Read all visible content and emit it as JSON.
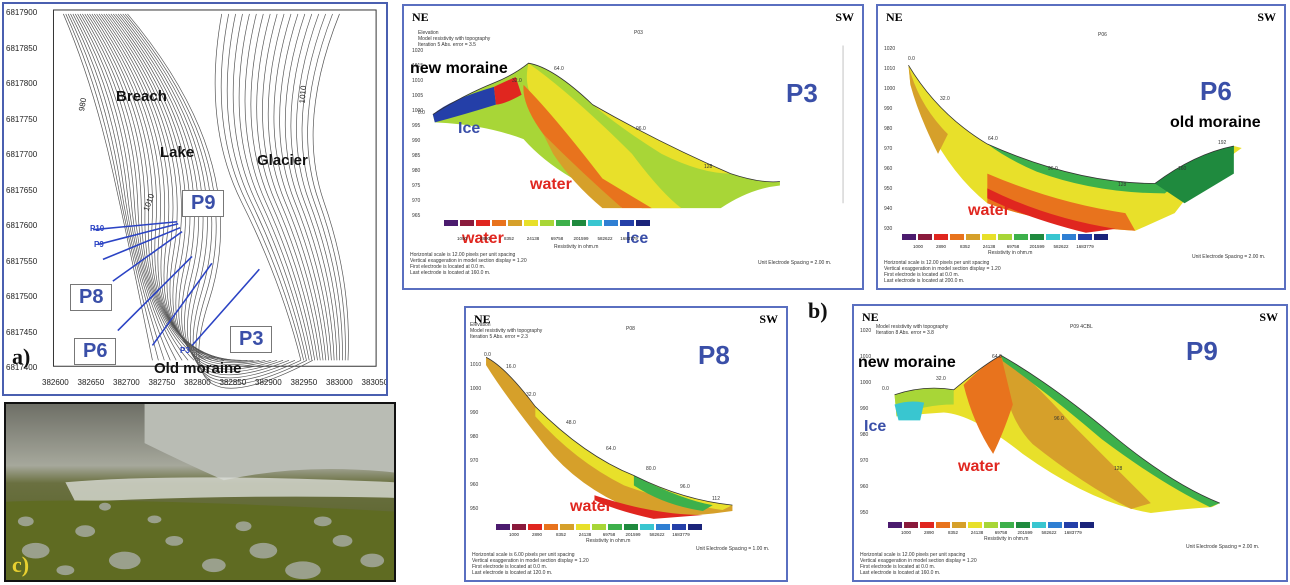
{
  "map": {
    "labels": {
      "breach": "Breach",
      "lake": "Lake",
      "glacier": "Glacier",
      "old_moraine": "Old moraine",
      "c1010a": "1010",
      "c1010b": "1010",
      "c980": "980"
    },
    "profiles": [
      "P9",
      "P8",
      "P6",
      "P3"
    ],
    "small_profiles": [
      "P10",
      "P9",
      "P3"
    ],
    "y_ticks": [
      "6817900",
      "6817850",
      "6817800",
      "6817750",
      "6817700",
      "6817650",
      "6817600",
      "6817550",
      "6817500",
      "6817450",
      "6817400"
    ],
    "x_ticks": [
      "382600",
      "382650",
      "382700",
      "382750",
      "382800",
      "382850",
      "382900",
      "382950",
      "383000",
      "383050"
    ],
    "tag": "a)"
  },
  "photo": {
    "tag": "c)"
  },
  "b_tag": "b)",
  "sections": {
    "p3": {
      "ne": "NE",
      "sw": "SW",
      "title": "P3",
      "sub": "P03",
      "hdr": "Elevation\nModel resistivity with topography\nIteration 5 Abs. error = 3.5",
      "new_moraine": "new moraine",
      "ice": "Ice",
      "ice2": "Ice",
      "water": "water",
      "water2": "water",
      "foot": "Horizontal scale is 12.00 pixels per unit spacing\nVertical exaggeration in model section display = 1.20\nFirst electrode is located at 0.0 m.\nLast electrode is located at 160.0 m.",
      "spacing": "Unit Electrode Spacing = 2.00 m.",
      "res": "Resistivity in ohm.m",
      "elev": [
        "1020",
        "1015",
        "1010",
        "1005",
        "1000",
        "995",
        "990",
        "985",
        "980",
        "975",
        "970",
        "965"
      ],
      "dist": [
        "0.0",
        "32.0",
        "64.0",
        "96.0",
        "128"
      ]
    },
    "p6": {
      "ne": "NE",
      "sw": "SW",
      "title": "P6",
      "sub": "P06",
      "old_moraine": "old moraine",
      "water": "water",
      "foot": "Horizontal scale is 12.00 pixels per unit spacing\nVertical exaggeration in model section display = 1.20\nFirst electrode is located at 0.0 m.\nLast electrode is located at 200.0 m.",
      "spacing": "Unit Electrode Spacing = 2.00 m.",
      "res": "Resistivity in ohm.m",
      "elev": [
        "1020",
        "1010",
        "1000",
        "990",
        "980",
        "970",
        "960",
        "950",
        "940",
        "930"
      ],
      "dist": [
        "0.0",
        "32.0",
        "64.0",
        "96.0",
        "128",
        "160",
        "192"
      ]
    },
    "p8": {
      "ne": "NE",
      "sw": "SW",
      "title": "P8",
      "sub": "P08",
      "hdr": "Elevation\nModel resistivity with topography\nIteration 5 Abs. error = 2.3",
      "water": "water",
      "foot": "Horizontal scale is 6.00 pixels per unit spacing\nVertical exaggeration in model section display = 1.20\nFirst electrode is located at 0.0 m.\nLast electrode is located at 120.0 m.",
      "spacing": "Unit Electrode Spacing = 1.00 m.",
      "res": "Resistivity in ohm.m",
      "elev": [
        "1010",
        "1000",
        "990",
        "980",
        "970",
        "960",
        "950"
      ],
      "dist": [
        "0.0",
        "16.0",
        "32.0",
        "48.0",
        "64.0",
        "80.0",
        "96.0",
        "112"
      ]
    },
    "p9": {
      "ne": "NE",
      "sw": "SW",
      "title": "P9",
      "sub": "P09 4CBL",
      "hdr": "Model resistivity with topography\nIteration 8 Abs. error = 3.8",
      "new_moraine": "new moraine",
      "ice": "Ice",
      "water": "water",
      "foot": "Horizontal scale is 12.00 pixels per unit spacing\nVertical exaggeration in model section display = 1.20\nFirst electrode is located at 0.0 m.\nLast electrode is located at 160.0 m.",
      "spacing": "Unit Electrode Spacing = 2.00 m.",
      "res": "Resistivity in ohm.m",
      "elev": [
        "1020",
        "1010",
        "1000",
        "990",
        "980",
        "970",
        "960",
        "950"
      ],
      "dist": [
        "0.0",
        "32.0",
        "64.0",
        "96.0",
        "128"
      ]
    }
  },
  "legend": {
    "values": [
      "1000",
      "2890",
      "8352",
      "24138",
      "69758",
      "201599",
      "582622",
      "1683779"
    ],
    "colors": [
      "#4b1b6e",
      "#8a1a3c",
      "#e0261f",
      "#e8731d",
      "#d6a02a",
      "#e8e02a",
      "#a8d637",
      "#3db04b",
      "#1f8a3e",
      "#39c6d0",
      "#2f7fd3",
      "#243fa8",
      "#1a237a"
    ]
  }
}
